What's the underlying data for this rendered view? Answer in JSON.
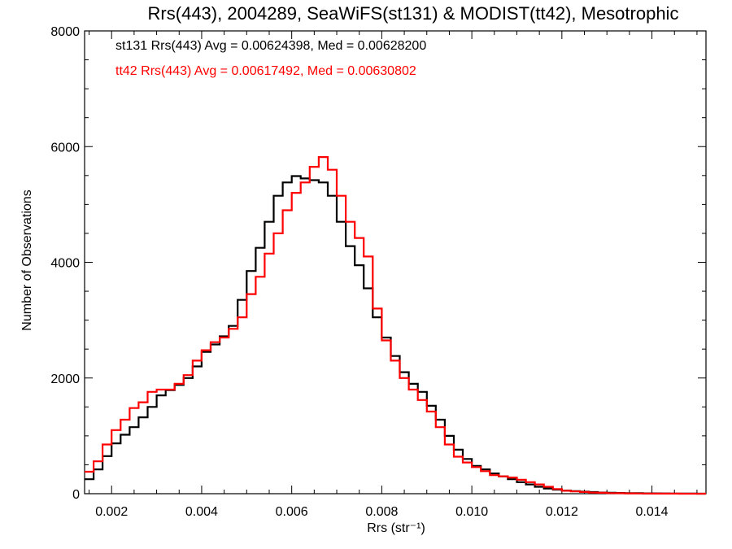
{
  "chart_data": {
    "type": "line",
    "title": "Rrs(443), 2004289, SeaWiFS(st131) & MODIST(tt42), Mesotrophic",
    "xlabel": "Rrs (str⁻¹)",
    "ylabel": "Number of Observations",
    "xlim": [
      0.0014,
      0.0152
    ],
    "ylim": [
      0,
      8000
    ],
    "xticks": [
      0.002,
      0.004,
      0.006,
      0.008,
      0.01,
      0.012,
      0.014
    ],
    "xtick_labels": [
      "0.002",
      "0.004",
      "0.006",
      "0.008",
      "0.010",
      "0.012",
      "0.014"
    ],
    "yticks": [
      0,
      2000,
      4000,
      6000,
      8000
    ],
    "ytick_labels": [
      "0",
      "2000",
      "4000",
      "6000",
      "8000"
    ],
    "grid": false,
    "legend_position": "top-left",
    "series": [
      {
        "name": "st131 Rrs(443) Avg = 0.00624398, Med = 0.00628200",
        "color": "#000000",
        "x": [
          0.0014,
          0.0016,
          0.0018,
          0.002,
          0.0022,
          0.0024,
          0.0026,
          0.0028,
          0.003,
          0.0032,
          0.0034,
          0.0036,
          0.0038,
          0.004,
          0.0042,
          0.0044,
          0.0046,
          0.0048,
          0.005,
          0.0052,
          0.0054,
          0.0056,
          0.0058,
          0.006,
          0.0062,
          0.0064,
          0.0066,
          0.0068,
          0.007,
          0.0072,
          0.0074,
          0.0076,
          0.0078,
          0.008,
          0.0082,
          0.0084,
          0.0086,
          0.0088,
          0.009,
          0.0092,
          0.0094,
          0.0096,
          0.0098,
          0.01,
          0.0102,
          0.0104,
          0.0106,
          0.0108,
          0.011,
          0.0112,
          0.0114,
          0.0116,
          0.0118,
          0.012,
          0.0122,
          0.0124,
          0.0126,
          0.0128,
          0.013,
          0.0132,
          0.0134,
          0.0136,
          0.0138,
          0.014,
          0.0142,
          0.0144,
          0.0146,
          0.0148,
          0.015,
          0.0152
        ],
        "values": [
          250,
          420,
          650,
          870,
          1020,
          1150,
          1320,
          1500,
          1700,
          1790,
          1880,
          2000,
          2200,
          2450,
          2580,
          2720,
          2900,
          3350,
          3850,
          4250,
          4700,
          5150,
          5380,
          5490,
          5450,
          5420,
          5380,
          5150,
          4700,
          4280,
          3950,
          3550,
          3050,
          2700,
          2380,
          2100,
          1900,
          1760,
          1520,
          1280,
          1000,
          760,
          600,
          480,
          420,
          350,
          300,
          250,
          200,
          160,
          120,
          90,
          70,
          55,
          45,
          35,
          28,
          20,
          15,
          12,
          10,
          8,
          6,
          5,
          4,
          3,
          2,
          1,
          0,
          0
        ]
      },
      {
        "name": "tt42 Rrs(443) Avg = 0.00617492, Med = 0.00630802",
        "color": "#ff0000",
        "x": [
          0.0014,
          0.0016,
          0.0018,
          0.002,
          0.0022,
          0.0024,
          0.0026,
          0.0028,
          0.003,
          0.0032,
          0.0034,
          0.0036,
          0.0038,
          0.004,
          0.0042,
          0.0044,
          0.0046,
          0.0048,
          0.005,
          0.0052,
          0.0054,
          0.0056,
          0.0058,
          0.006,
          0.0062,
          0.0064,
          0.0066,
          0.0068,
          0.007,
          0.0072,
          0.0074,
          0.0076,
          0.0078,
          0.008,
          0.0082,
          0.0084,
          0.0086,
          0.0088,
          0.009,
          0.0092,
          0.0094,
          0.0096,
          0.0098,
          0.01,
          0.0102,
          0.0104,
          0.0106,
          0.0108,
          0.011,
          0.0112,
          0.0114,
          0.0116,
          0.0118,
          0.012,
          0.0122,
          0.0124,
          0.0126,
          0.0128,
          0.013,
          0.0132,
          0.0134,
          0.0136,
          0.0138,
          0.014,
          0.0142,
          0.0144,
          0.0146,
          0.0148,
          0.015,
          0.0152
        ],
        "values": [
          380,
          560,
          850,
          1100,
          1280,
          1480,
          1580,
          1760,
          1800,
          1800,
          1900,
          2050,
          2300,
          2480,
          2620,
          2700,
          2850,
          3050,
          3450,
          3750,
          4150,
          4500,
          4900,
          5200,
          5380,
          5650,
          5820,
          5600,
          5150,
          4700,
          4420,
          4100,
          3200,
          2650,
          2300,
          2000,
          1800,
          1620,
          1420,
          1150,
          850,
          640,
          540,
          460,
          390,
          320,
          300,
          280,
          240,
          200,
          160,
          120,
          80,
          50,
          40,
          30,
          20,
          15,
          10,
          8,
          6,
          4,
          3,
          2,
          1,
          1,
          0,
          0,
          0,
          0
        ]
      }
    ]
  }
}
